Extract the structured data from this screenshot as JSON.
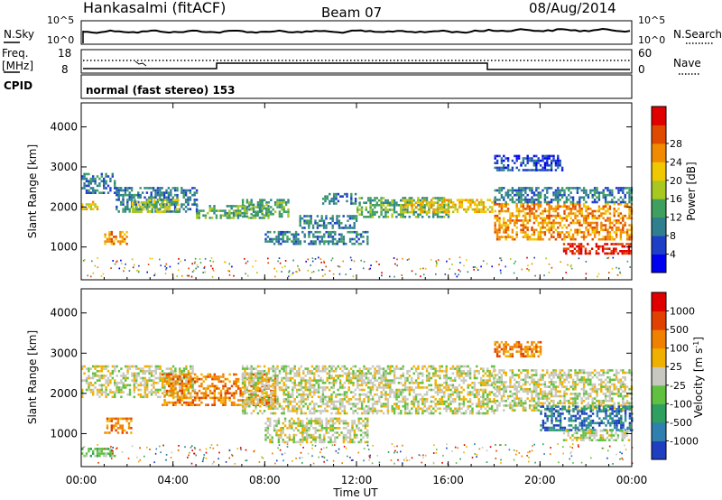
{
  "header": {
    "station": "Hankasalmi (fitACF)",
    "beam": "Beam 07",
    "date": "08/Aug/2014"
  },
  "noise_panel": {
    "left_label": "N.Sky",
    "right_label": "N.Search",
    "left_ticks": [
      "10^5",
      "10^0"
    ],
    "right_ticks": [
      "10^5",
      "10^0"
    ]
  },
  "freq_panel": {
    "left_label_line1": "Freq.",
    "left_label_line2": "[MHz]",
    "right_label": "Nave",
    "left_ticks": [
      "18",
      "8"
    ],
    "right_ticks": [
      "60",
      "0"
    ]
  },
  "cpid_panel": {
    "label": "CPID",
    "program": "normal (fast stereo) 153"
  },
  "chart_data": [
    {
      "type": "heatmap",
      "name": "power",
      "ylabel": "Slant Range [km]",
      "ylim": [
        180,
        4600
      ],
      "yticks": [
        "1000",
        "2000",
        "3000",
        "4000"
      ],
      "xlim_hours": [
        0,
        24
      ],
      "xticks": [
        "00:00",
        "04:00",
        "08:00",
        "12:00",
        "16:00",
        "20:00",
        "00:00"
      ],
      "colorbar": {
        "label": "Power [dB]",
        "tick_labels": [
          "4",
          "8",
          "12",
          "16",
          "20",
          "24",
          "28"
        ],
        "colors": [
          "#0000f0",
          "#1d3fc8",
          "#2f7f8f",
          "#3f9f5f",
          "#a8c820",
          "#f0c800",
          "#f08a00",
          "#e04a00",
          "#e00000"
        ]
      },
      "echo_bands": [
        {
          "t0": 0.0,
          "t1": 1.5,
          "r0": 2350,
          "r1": 2850,
          "level": 2
        },
        {
          "t0": 0.0,
          "t1": 0.7,
          "r0": 1950,
          "r1": 2150,
          "level": 5
        },
        {
          "t0": 1.5,
          "t1": 5.0,
          "r0": 1900,
          "r1": 2500,
          "level": 2
        },
        {
          "t0": 2.2,
          "t1": 4.2,
          "r0": 1900,
          "r1": 2200,
          "level": 4
        },
        {
          "t0": 1.0,
          "t1": 2.0,
          "r0": 1050,
          "r1": 1400,
          "level": 6
        },
        {
          "t0": 5.0,
          "t1": 8.2,
          "r0": 1700,
          "r1": 2050,
          "level": 3
        },
        {
          "t0": 7.0,
          "t1": 9.0,
          "r0": 1750,
          "r1": 2200,
          "level": 3
        },
        {
          "t0": 8.0,
          "t1": 12.5,
          "r0": 1100,
          "r1": 1400,
          "level": 2
        },
        {
          "t0": 9.5,
          "t1": 12.0,
          "r0": 1500,
          "r1": 1800,
          "level": 2
        },
        {
          "t0": 10.5,
          "t1": 12.0,
          "r0": 2100,
          "r1": 2350,
          "level": 2
        },
        {
          "t0": 12.0,
          "t1": 16.0,
          "r0": 1750,
          "r1": 2250,
          "level": 3
        },
        {
          "t0": 14.0,
          "t1": 18.0,
          "r0": 1900,
          "r1": 2200,
          "level": 5
        },
        {
          "t0": 18.0,
          "t1": 24.0,
          "r0": 1200,
          "r1": 2100,
          "level": 6
        },
        {
          "t0": 18.0,
          "t1": 24.0,
          "r0": 2100,
          "r1": 2500,
          "level": 2
        },
        {
          "t0": 21.0,
          "t1": 24.0,
          "r0": 850,
          "r1": 1100,
          "level": 8
        },
        {
          "t0": 18.0,
          "t1": 21.0,
          "r0": 2900,
          "r1": 3300,
          "level": 1
        }
      ]
    },
    {
      "type": "heatmap",
      "name": "velocity",
      "ylabel": "Slant Range [km]",
      "ylim": [
        180,
        4600
      ],
      "yticks": [
        "1000",
        "2000",
        "3000",
        "4000"
      ],
      "xlim_hours": [
        0,
        24
      ],
      "xticks": [
        "00:00",
        "04:00",
        "08:00",
        "12:00",
        "16:00",
        "20:00",
        "00:00"
      ],
      "xlabel": "Time UT",
      "colorbar": {
        "label": "Velocity [m s-1]",
        "label_main": "Velocity [m s",
        "label_exp": "-1",
        "label_close": "]",
        "tick_labels": [
          "1000",
          "500",
          "100",
          "25",
          "-25",
          "-100",
          "-500",
          "-1000"
        ],
        "colors": [
          "#1f3fc0",
          "#2f7faf",
          "#2f9f5f",
          "#60c040",
          "#c8c8c0",
          "#f0b000",
          "#f08000",
          "#e04000",
          "#e00000"
        ]
      },
      "echo_bands": [
        {
          "t0": 0.0,
          "t1": 5.0,
          "r0": 1900,
          "r1": 2700,
          "level": 4
        },
        {
          "t0": 3.5,
          "t1": 8.5,
          "r0": 1700,
          "r1": 2500,
          "level": 6
        },
        {
          "t0": 1.0,
          "t1": 2.2,
          "r0": 1000,
          "r1": 1400,
          "level": 6
        },
        {
          "t0": 0.0,
          "t1": 1.5,
          "r0": 450,
          "r1": 650,
          "level": 3
        },
        {
          "t0": 7.0,
          "t1": 18.0,
          "r0": 1500,
          "r1": 2700,
          "level": 4
        },
        {
          "t0": 8.0,
          "t1": 12.5,
          "r0": 800,
          "r1": 1400,
          "level": 4
        },
        {
          "t0": 18.0,
          "t1": 24.0,
          "r0": 1600,
          "r1": 2600,
          "level": 4
        },
        {
          "t0": 20.0,
          "t1": 24.0,
          "r0": 1100,
          "r1": 1700,
          "level": 1
        },
        {
          "t0": 21.0,
          "t1": 24.0,
          "r0": 850,
          "r1": 1100,
          "level": 4
        },
        {
          "t0": 18.0,
          "t1": 20.0,
          "r0": 2900,
          "r1": 3300,
          "level": 6
        }
      ]
    }
  ]
}
